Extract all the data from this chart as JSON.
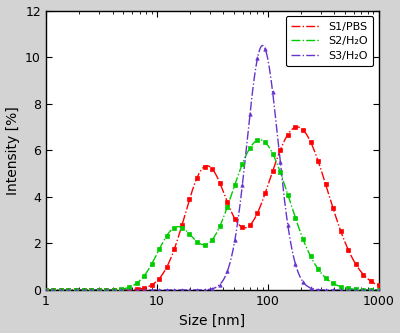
{
  "title": "",
  "xlabel": "Size [nm]",
  "ylabel": "Intensity [%]",
  "xlim": [
    1,
    1000
  ],
  "ylim": [
    0,
    12
  ],
  "yticks": [
    0,
    2,
    4,
    6,
    8,
    10,
    12
  ],
  "series": [
    {
      "label": "S1/PBS",
      "color": "#ff0000",
      "marker": "s",
      "markersize": 2.5
    },
    {
      "label": "S2/H₂O",
      "color": "#00cc00",
      "marker": "s",
      "markersize": 2.5
    },
    {
      "label": "S3/H₂O",
      "color": "#6633cc",
      "marker": "^",
      "markersize": 2.5
    }
  ],
  "background_color": "#d3d3d3",
  "plot_bg_color": "#ffffff",
  "legend_fontsize": 8,
  "axis_fontsize": 10,
  "tick_fontsize": 9
}
